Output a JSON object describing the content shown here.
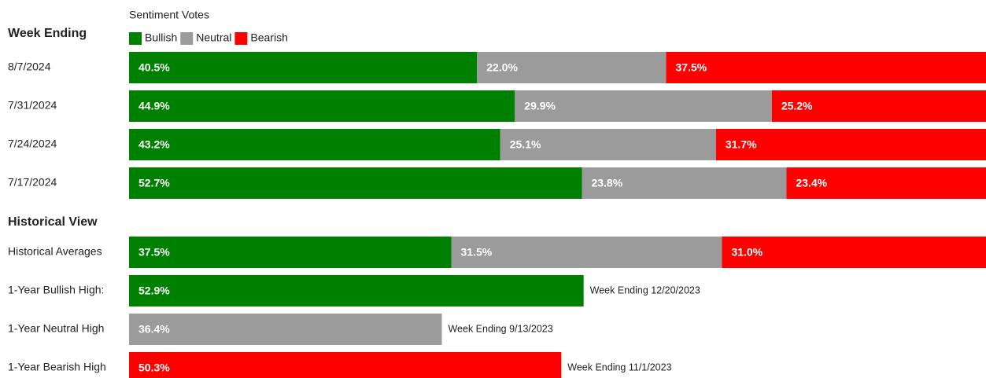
{
  "chart_data": [
    {
      "type": "stacked-bar-horizontal",
      "title": "Week Ending",
      "legend_title": "Sentiment Votes",
      "categories": [
        "8/7/2024",
        "7/31/2024",
        "7/24/2024",
        "7/17/2024"
      ],
      "series": [
        {
          "name": "Bullish",
          "color": "#008000",
          "values": [
            40.5,
            44.9,
            43.2,
            52.7
          ],
          "value_labels": [
            "40.5%",
            "44.9%",
            "43.2%",
            "52.7%"
          ]
        },
        {
          "name": "Neutral",
          "color": "#9b9b9b",
          "values": [
            22.0,
            29.9,
            25.1,
            23.8
          ],
          "value_labels": [
            "22.0%",
            "29.9%",
            "25.1%",
            "23.8%"
          ]
        },
        {
          "name": "Bearish",
          "color": "#ff0000",
          "values": [
            37.5,
            25.2,
            31.7,
            23.4
          ],
          "value_labels": [
            "37.5%",
            "25.2%",
            "31.7%",
            "23.4%"
          ]
        }
      ],
      "xlim": [
        0,
        100
      ],
      "legend": "top-left"
    },
    {
      "type": "stacked-bar-horizontal",
      "title": "Historical View",
      "categories": [
        "Historical Averages",
        "1-Year Bullish High:",
        "1-Year Neutral High",
        "1-Year Bearish High"
      ],
      "series": [
        {
          "name": "Bullish",
          "color": "#008000",
          "values": [
            37.5,
            52.9,
            null,
            null
          ],
          "value_labels": [
            "37.5%",
            "52.9%",
            null,
            null
          ]
        },
        {
          "name": "Neutral",
          "color": "#9b9b9b",
          "values": [
            31.5,
            null,
            36.4,
            null
          ],
          "value_labels": [
            "31.5%",
            null,
            "36.4%",
            null
          ]
        },
        {
          "name": "Bearish",
          "color": "#ff0000",
          "values": [
            31.0,
            null,
            null,
            50.3
          ],
          "value_labels": [
            "31.0%",
            null,
            null,
            "50.3%"
          ]
        }
      ],
      "annotations": [
        null,
        "Week Ending 12/20/2023",
        "Week Ending 9/13/2023",
        "Week Ending 11/1/2023"
      ],
      "xlim": [
        0,
        100
      ]
    }
  ]
}
